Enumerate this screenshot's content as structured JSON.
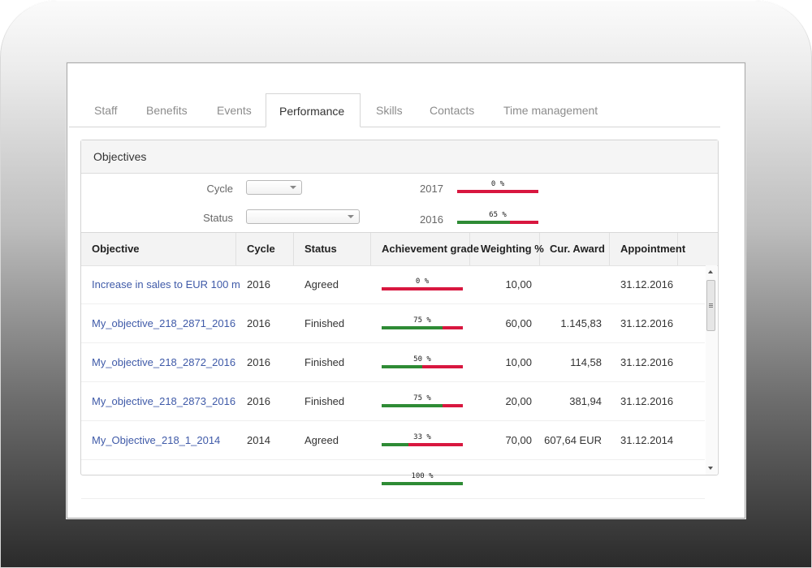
{
  "tabs": [
    "Staff",
    "Benefits",
    "Events",
    "Performance",
    "Skills",
    "Contacts",
    "Time management"
  ],
  "active_tab": "Performance",
  "panel": {
    "title": "Objectives",
    "filters": {
      "cycle_label": "Cycle",
      "status_label": "Status",
      "cycle_value": "",
      "status_value": ""
    },
    "summary": [
      {
        "year": "2017",
        "pct": 0,
        "text": "0 %"
      },
      {
        "year": "2016",
        "pct": 65,
        "text": "65 %"
      }
    ]
  },
  "table": {
    "columns": [
      "Objective",
      "Cycle",
      "Status",
      "Achievement grade",
      "Weighting %",
      "Cur. Award",
      "Appointment"
    ],
    "rows": [
      {
        "objective": "Increase in sales to EUR 100 m",
        "cycle": "2016",
        "status": "Agreed",
        "pct": 0,
        "pct_text": "0 %",
        "weighting": "10,00",
        "award": "",
        "appointment": "31.12.2016"
      },
      {
        "objective": "My_objective_218_2871_2016",
        "cycle": "2016",
        "status": "Finished",
        "pct": 75,
        "pct_text": "75 %",
        "weighting": "60,00",
        "award": "1.145,83",
        "appointment": "31.12.2016"
      },
      {
        "objective": "My_objective_218_2872_2016",
        "cycle": "2016",
        "status": "Finished",
        "pct": 50,
        "pct_text": "50 %",
        "weighting": "10,00",
        "award": "114,58",
        "appointment": "31.12.2016"
      },
      {
        "objective": "My_objective_218_2873_2016",
        "cycle": "2016",
        "status": "Finished",
        "pct": 75,
        "pct_text": "75 %",
        "weighting": "20,00",
        "award": "381,94",
        "appointment": "31.12.2016"
      },
      {
        "objective": "My_Objective_218_1_2014",
        "cycle": "2014",
        "status": "Agreed",
        "pct": 33,
        "pct_text": "33 %",
        "weighting": "70,00",
        "award": "607,64 EUR",
        "appointment": "31.12.2014"
      },
      {
        "objective": "",
        "cycle": "",
        "status": "",
        "pct": 100,
        "pct_text": "100 %",
        "weighting": "",
        "award": "",
        "appointment": ""
      }
    ]
  },
  "colors": {
    "achieved": "#2e8b35",
    "remaining": "#d8173f",
    "link": "#3f5aa8"
  }
}
